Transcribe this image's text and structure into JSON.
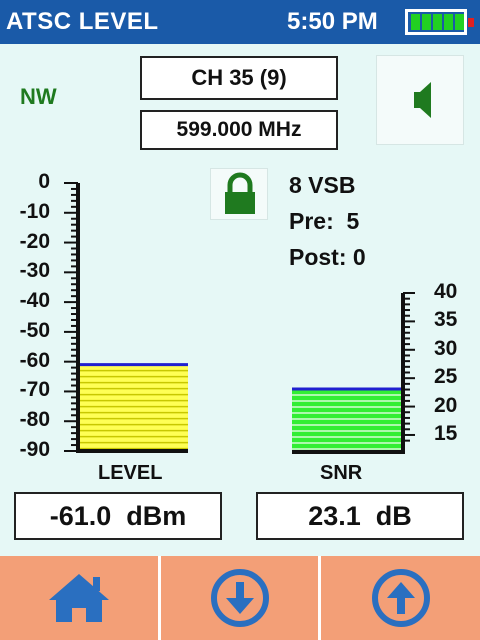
{
  "header": {
    "title": "ATSC LEVEL",
    "time": "5:50 PM"
  },
  "status": {
    "direction": "NW",
    "channel": "CH 35 (9)",
    "frequency": "599.000 MHz",
    "modulation": "8 VSB",
    "pre_label": "Pre:",
    "pre_value": "5",
    "post_label": "Post:",
    "post_value": "0"
  },
  "level_meter": {
    "ticks": [
      "0",
      "-10",
      "-20",
      "-30",
      "-40",
      "-50",
      "-60",
      "-70",
      "-80",
      "-90"
    ],
    "min": -90,
    "max": 0,
    "value": -61.0,
    "label": "LEVEL",
    "readout": "-61.0  dBm"
  },
  "snr_meter": {
    "ticks": [
      "40",
      "35",
      "30",
      "25",
      "20",
      "15"
    ],
    "min": 12,
    "max": 40,
    "value": 23.1,
    "label": "SNR",
    "readout": "23.1  dB"
  },
  "nav": {
    "buttons": [
      "home-icon",
      "arrow-down-icon",
      "arrow-up-icon"
    ]
  },
  "colors": {
    "title_bar": "#1a5aa8",
    "level_fill": "#ffff55",
    "snr_fill": "#33ee33",
    "marker": "#2020d0",
    "nav_button": "#f39f77",
    "icon": "#2a6fc0"
  }
}
